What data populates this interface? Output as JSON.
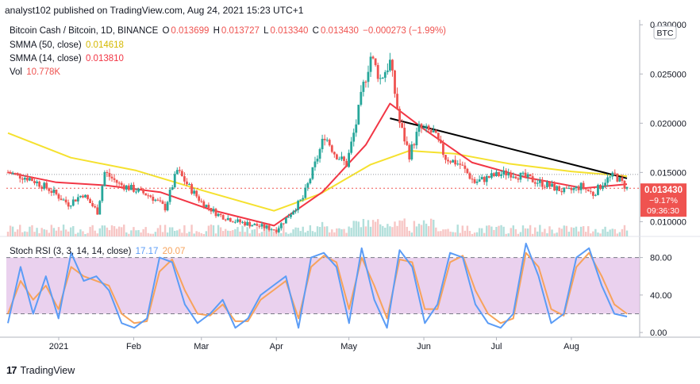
{
  "header": {
    "published": "analyst102 published on TradingView.com, Aug 24, 2021 15:23 UTC+1"
  },
  "legend": {
    "symbol": "Bitcoin Cash / Bitcoin, 1D, BINANCE",
    "o_label": "O",
    "o": "0.013699",
    "h_label": "H",
    "h": "0.013727",
    "l_label": "L",
    "l": "0.013340",
    "c_label": "C",
    "c": "0.013430",
    "change": "−0.000273 (−1.99%)",
    "smma50_label": "SMMA (50, close)",
    "smma50": "0.014618",
    "smma14_label": "SMMA (14, close)",
    "smma14": "0.013810",
    "vol_label": "Vol",
    "vol": "10.778K",
    "stoch_label": "Stoch RSI (3, 3, 14, 14, close)",
    "stoch_k": "17.17",
    "stoch_d": "20.07"
  },
  "price_axis": {
    "currency": "BTC",
    "ticks": [
      "0.030000",
      "0.025000",
      "0.020000",
      "0.015000",
      "0.010000"
    ]
  },
  "price_badge": {
    "price": "0.013430",
    "change": "−9.17%",
    "countdown": "09:36:30"
  },
  "stoch_axis": {
    "ticks": [
      "80.00",
      "40.00",
      "0.00"
    ]
  },
  "time_axis": {
    "labels": [
      "2021",
      "Feb",
      "Mar",
      "Apr",
      "May",
      "Jun",
      "Jul",
      "Aug"
    ]
  },
  "footer": {
    "brand": "TradingView"
  },
  "colors": {
    "up": "#26a69a",
    "down": "#ef5350",
    "smma50": "#f5e12f",
    "smma14": "#f23645",
    "trend": "#000000",
    "stoch_k": "#5b9cf6",
    "stoch_d": "#f7a35c",
    "stoch_band": "#e1bee7"
  },
  "chart_data": {
    "type": "candlestick",
    "title": "Bitcoin Cash / Bitcoin, 1D, BINANCE",
    "yrange": [
      0.0085,
      0.0305
    ],
    "close_series": [
      {
        "date": "2020-12-11",
        "close": 0.015
      },
      {
        "date": "2020-12-20",
        "close": 0.0144
      },
      {
        "date": "2020-12-28",
        "close": 0.0133
      },
      {
        "date": "2021-01-05",
        "close": 0.0118
      },
      {
        "date": "2021-01-11",
        "close": 0.0128
      },
      {
        "date": "2021-01-17",
        "close": 0.011
      },
      {
        "date": "2021-01-20",
        "close": 0.015
      },
      {
        "date": "2021-01-26",
        "close": 0.0138
      },
      {
        "date": "2021-02-02",
        "close": 0.0132
      },
      {
        "date": "2021-02-08",
        "close": 0.0126
      },
      {
        "date": "2021-02-14",
        "close": 0.0114
      },
      {
        "date": "2021-02-19",
        "close": 0.0152
      },
      {
        "date": "2021-02-24",
        "close": 0.0135
      },
      {
        "date": "2021-03-01",
        "close": 0.012
      },
      {
        "date": "2021-03-08",
        "close": 0.0107
      },
      {
        "date": "2021-03-16",
        "close": 0.01
      },
      {
        "date": "2021-03-24",
        "close": 0.0096
      },
      {
        "date": "2021-04-01",
        "close": 0.0092
      },
      {
        "date": "2021-04-06",
        "close": 0.0106
      },
      {
        "date": "2021-04-12",
        "close": 0.0124
      },
      {
        "date": "2021-04-17",
        "close": 0.0158
      },
      {
        "date": "2021-04-21",
        "close": 0.0188
      },
      {
        "date": "2021-04-25",
        "close": 0.017
      },
      {
        "date": "2021-04-30",
        "close": 0.0158
      },
      {
        "date": "2021-05-04",
        "close": 0.02
      },
      {
        "date": "2021-05-07",
        "close": 0.0238
      },
      {
        "date": "2021-05-10",
        "close": 0.0268
      },
      {
        "date": "2021-05-14",
        "close": 0.0245
      },
      {
        "date": "2021-05-18",
        "close": 0.0262
      },
      {
        "date": "2021-05-22",
        "close": 0.02
      },
      {
        "date": "2021-05-26",
        "close": 0.0168
      },
      {
        "date": "2021-05-30",
        "close": 0.0195
      },
      {
        "date": "2021-06-05",
        "close": 0.019
      },
      {
        "date": "2021-06-10",
        "close": 0.0165
      },
      {
        "date": "2021-06-16",
        "close": 0.0158
      },
      {
        "date": "2021-06-22",
        "close": 0.014
      },
      {
        "date": "2021-06-29",
        "close": 0.0146
      },
      {
        "date": "2021-07-06",
        "close": 0.015
      },
      {
        "date": "2021-07-14",
        "close": 0.0144
      },
      {
        "date": "2021-07-22",
        "close": 0.0137
      },
      {
        "date": "2021-07-30",
        "close": 0.013
      },
      {
        "date": "2021-08-05",
        "close": 0.0136
      },
      {
        "date": "2021-08-10",
        "close": 0.0128
      },
      {
        "date": "2021-08-15",
        "close": 0.0142
      },
      {
        "date": "2021-08-19",
        "close": 0.0147
      },
      {
        "date": "2021-08-24",
        "close": 0.0134
      }
    ],
    "smma50_series": [
      {
        "date": "2020-12-11",
        "value": 0.019
      },
      {
        "date": "2021-01-06",
        "value": 0.0165
      },
      {
        "date": "2021-02-02",
        "value": 0.0152
      },
      {
        "date": "2021-03-01",
        "value": 0.0132
      },
      {
        "date": "2021-03-31",
        "value": 0.0111
      },
      {
        "date": "2021-04-19",
        "value": 0.0128
      },
      {
        "date": "2021-05-10",
        "value": 0.0158
      },
      {
        "date": "2021-05-26",
        "value": 0.0172
      },
      {
        "date": "2021-06-14",
        "value": 0.0169
      },
      {
        "date": "2021-07-06",
        "value": 0.0159
      },
      {
        "date": "2021-08-01",
        "value": 0.0151
      },
      {
        "date": "2021-08-24",
        "value": 0.014618
      }
    ],
    "smma14_series": [
      {
        "date": "2020-12-11",
        "value": 0.015
      },
      {
        "date": "2020-12-31",
        "value": 0.014
      },
      {
        "date": "2021-01-20",
        "value": 0.0137
      },
      {
        "date": "2021-02-12",
        "value": 0.013
      },
      {
        "date": "2021-03-05",
        "value": 0.0112
      },
      {
        "date": "2021-03-31",
        "value": 0.0096
      },
      {
        "date": "2021-04-20",
        "value": 0.013
      },
      {
        "date": "2021-05-08",
        "value": 0.0178
      },
      {
        "date": "2021-05-18",
        "value": 0.022
      },
      {
        "date": "2021-06-01",
        "value": 0.0194
      },
      {
        "date": "2021-06-21",
        "value": 0.016
      },
      {
        "date": "2021-07-13",
        "value": 0.0145
      },
      {
        "date": "2021-08-06",
        "value": 0.0134
      },
      {
        "date": "2021-08-24",
        "value": 0.01381
      }
    ],
    "trendline": [
      {
        "date": "2021-05-18",
        "value": 0.0205
      },
      {
        "date": "2021-08-24",
        "value": 0.0144
      }
    ],
    "stoch_rsi": {
      "k": [
        10,
        70,
        20,
        60,
        15,
        85,
        55,
        60,
        45,
        10,
        5,
        15,
        80,
        75,
        30,
        10,
        20,
        35,
        5,
        15,
        40,
        50,
        60,
        5,
        80,
        85,
        70,
        10,
        90,
        35,
        5,
        88,
        70,
        10,
        30,
        85,
        80,
        30,
        10,
        5,
        20,
        95,
        60,
        10,
        20,
        80,
        90,
        50,
        20,
        17
      ],
      "d": [
        20,
        55,
        35,
        50,
        25,
        70,
        60,
        55,
        50,
        20,
        10,
        12,
        65,
        78,
        45,
        20,
        18,
        30,
        12,
        12,
        35,
        45,
        55,
        15,
        70,
        82,
        75,
        25,
        80,
        50,
        15,
        78,
        75,
        25,
        25,
        75,
        82,
        45,
        20,
        10,
        15,
        85,
        70,
        25,
        18,
        70,
        85,
        60,
        30,
        20
      ],
      "bands": [
        20,
        80
      ],
      "yrange": [
        -5,
        100
      ]
    }
  }
}
